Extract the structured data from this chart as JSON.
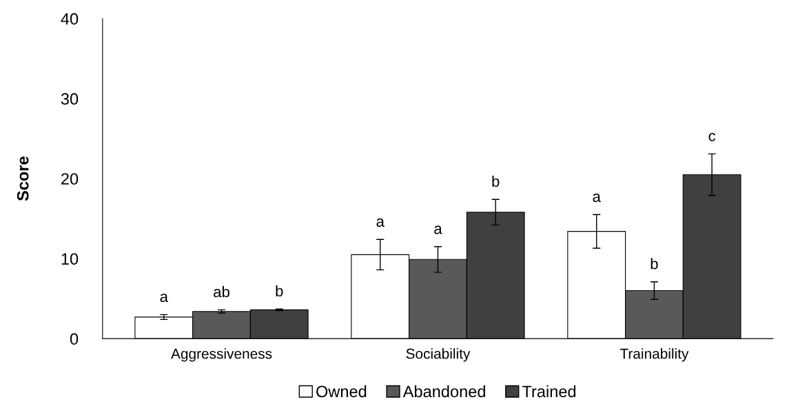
{
  "chart_data": {
    "type": "bar",
    "ylabel": "Score",
    "categories": [
      "Aggressiveness",
      "Sociability",
      "Trainability"
    ],
    "series": [
      {
        "name": "Owned",
        "color": "#ffffff",
        "values": [
          2.7,
          10.5,
          13.4
        ],
        "errors": [
          0.3,
          1.9,
          2.1
        ],
        "value_labels": [
          "a",
          "a",
          "a"
        ]
      },
      {
        "name": "Abandoned",
        "color": "#595959",
        "values": [
          3.4,
          9.9,
          6.0
        ],
        "errors": [
          0.2,
          1.6,
          1.1
        ],
        "value_labels": [
          "ab",
          "a",
          "b"
        ]
      },
      {
        "name": "Trained",
        "color": "#404040",
        "values": [
          3.6,
          15.8,
          20.5
        ],
        "errors": [
          0.1,
          1.6,
          2.6
        ],
        "value_labels": [
          "b",
          "b",
          "c"
        ]
      }
    ],
    "ylim": [
      0,
      40
    ],
    "yticks": [
      0,
      10,
      20,
      30,
      40
    ],
    "grid": false,
    "legend": "bottom"
  }
}
